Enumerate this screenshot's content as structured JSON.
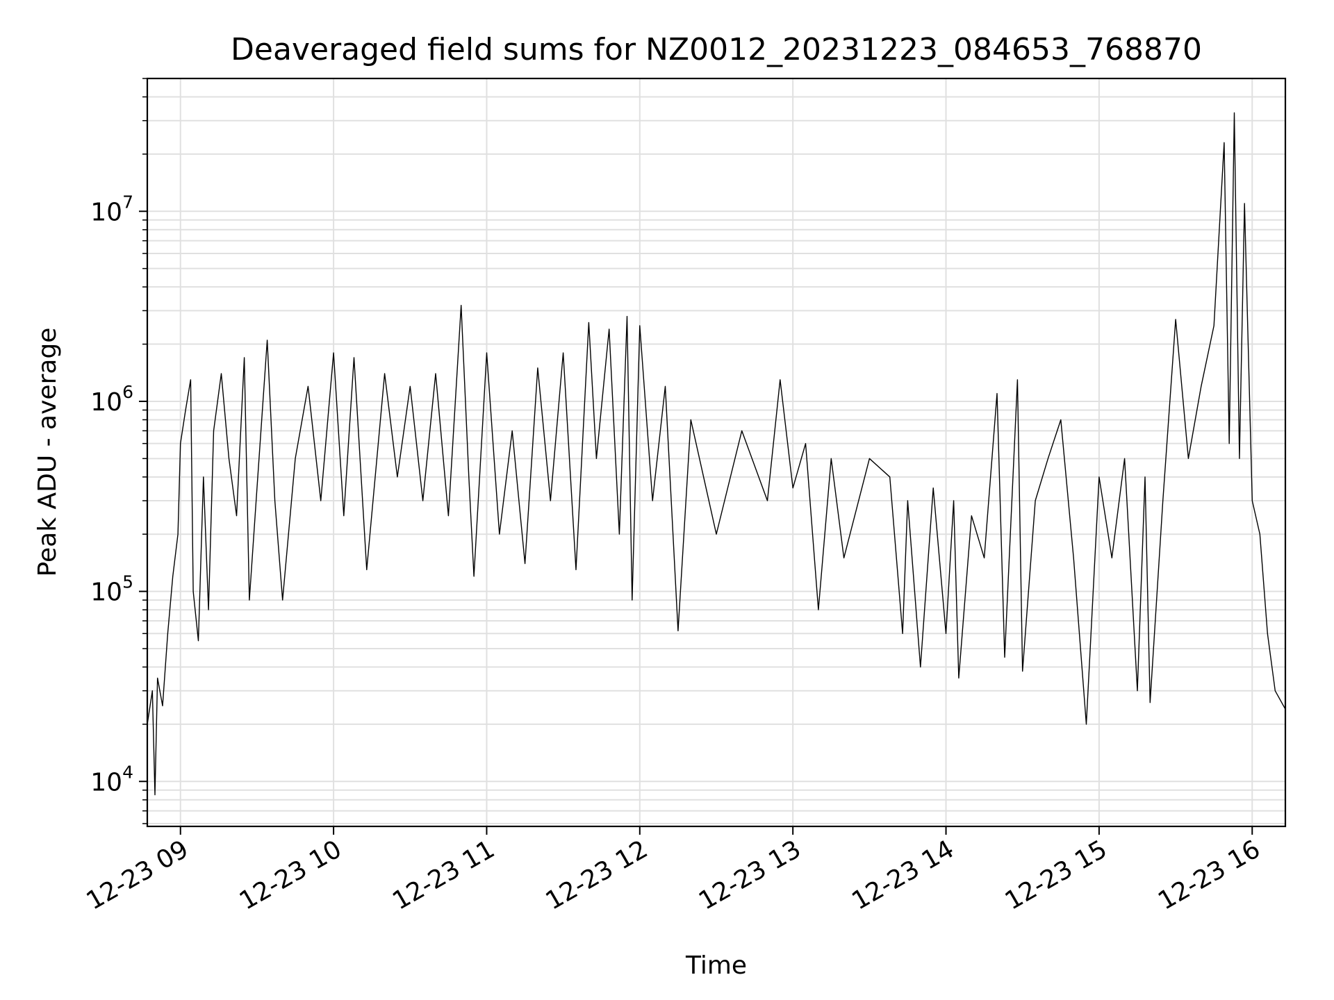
{
  "chart_data": {
    "type": "line",
    "title": "Deaveraged field sums for NZ0012_20231223_084653_768870",
    "xlabel": "Time",
    "ylabel": "Peak ADU - average",
    "y_scale": "log",
    "grid": true,
    "line_color": "#000000",
    "grid_color": "#e0e0e0",
    "xlim": [
      "2023-12-23 08:47",
      "2023-12-23 16:13"
    ],
    "ylim": [
      5800,
      50000000
    ],
    "x_ticks": [
      {
        "t": "2023-12-23 09:00",
        "label": "12-23 09"
      },
      {
        "t": "2023-12-23 10:00",
        "label": "12-23 10"
      },
      {
        "t": "2023-12-23 11:00",
        "label": "12-23 11"
      },
      {
        "t": "2023-12-23 12:00",
        "label": "12-23 12"
      },
      {
        "t": "2023-12-23 13:00",
        "label": "12-23 13"
      },
      {
        "t": "2023-12-23 14:00",
        "label": "12-23 14"
      },
      {
        "t": "2023-12-23 15:00",
        "label": "12-23 15"
      },
      {
        "t": "2023-12-23 16:00",
        "label": "12-23 16"
      }
    ],
    "y_ticks": [
      {
        "value": 10000,
        "base": "10",
        "exp": "4"
      },
      {
        "value": 100000,
        "base": "10",
        "exp": "5"
      },
      {
        "value": 1000000,
        "base": "10",
        "exp": "6"
      },
      {
        "value": 10000000,
        "base": "10",
        "exp": "7"
      }
    ],
    "series": [
      {
        "points": [
          [
            "2023-12-23 08:47",
            20000
          ],
          [
            "2023-12-23 08:49",
            30000
          ],
          [
            "2023-12-23 08:50",
            8500
          ],
          [
            "2023-12-23 08:51",
            35000
          ],
          [
            "2023-12-23 08:53",
            25000
          ],
          [
            "2023-12-23 08:55",
            60000
          ],
          [
            "2023-12-23 08:57",
            120000
          ],
          [
            "2023-12-23 08:59",
            200000
          ],
          [
            "2023-12-23 09:00",
            600000
          ],
          [
            "2023-12-23 09:02",
            900000
          ],
          [
            "2023-12-23 09:04",
            1300000
          ],
          [
            "2023-12-23 09:05",
            100000
          ],
          [
            "2023-12-23 09:07",
            55000
          ],
          [
            "2023-12-23 09:09",
            400000
          ],
          [
            "2023-12-23 09:11",
            80000
          ],
          [
            "2023-12-23 09:13",
            700000
          ],
          [
            "2023-12-23 09:16",
            1400000
          ],
          [
            "2023-12-23 09:19",
            500000
          ],
          [
            "2023-12-23 09:22",
            250000
          ],
          [
            "2023-12-23 09:25",
            1700000
          ],
          [
            "2023-12-23 09:27",
            90000
          ],
          [
            "2023-12-23 09:30",
            350000
          ],
          [
            "2023-12-23 09:34",
            2100000
          ],
          [
            "2023-12-23 09:37",
            300000
          ],
          [
            "2023-12-23 09:40",
            90000
          ],
          [
            "2023-12-23 09:45",
            500000
          ],
          [
            "2023-12-23 09:50",
            1200000
          ],
          [
            "2023-12-23 09:55",
            300000
          ],
          [
            "2023-12-23 10:00",
            1800000
          ],
          [
            "2023-12-23 10:04",
            250000
          ],
          [
            "2023-12-23 10:08",
            1700000
          ],
          [
            "2023-12-23 10:13",
            130000
          ],
          [
            "2023-12-23 10:20",
            1400000
          ],
          [
            "2023-12-23 10:25",
            400000
          ],
          [
            "2023-12-23 10:30",
            1200000
          ],
          [
            "2023-12-23 10:35",
            300000
          ],
          [
            "2023-12-23 10:40",
            1400000
          ],
          [
            "2023-12-23 10:45",
            250000
          ],
          [
            "2023-12-23 10:50",
            3200000
          ],
          [
            "2023-12-23 10:53",
            400000
          ],
          [
            "2023-12-23 10:55",
            120000
          ],
          [
            "2023-12-23 11:00",
            1800000
          ],
          [
            "2023-12-23 11:05",
            200000
          ],
          [
            "2023-12-23 11:10",
            700000
          ],
          [
            "2023-12-23 11:15",
            140000
          ],
          [
            "2023-12-23 11:20",
            1500000
          ],
          [
            "2023-12-23 11:25",
            300000
          ],
          [
            "2023-12-23 11:30",
            1800000
          ],
          [
            "2023-12-23 11:35",
            130000
          ],
          [
            "2023-12-23 11:40",
            2600000
          ],
          [
            "2023-12-23 11:43",
            500000
          ],
          [
            "2023-12-23 11:48",
            2400000
          ],
          [
            "2023-12-23 11:52",
            200000
          ],
          [
            "2023-12-23 11:55",
            2800000
          ],
          [
            "2023-12-23 11:57",
            90000
          ],
          [
            "2023-12-23 12:00",
            2500000
          ],
          [
            "2023-12-23 12:05",
            300000
          ],
          [
            "2023-12-23 12:10",
            1200000
          ],
          [
            "2023-12-23 12:15",
            62000
          ],
          [
            "2023-12-23 12:20",
            800000
          ],
          [
            "2023-12-23 12:30",
            200000
          ],
          [
            "2023-12-23 12:40",
            700000
          ],
          [
            "2023-12-23 12:50",
            300000
          ],
          [
            "2023-12-23 12:55",
            1300000
          ],
          [
            "2023-12-23 13:00",
            350000
          ],
          [
            "2023-12-23 13:05",
            600000
          ],
          [
            "2023-12-23 13:10",
            80000
          ],
          [
            "2023-12-23 13:15",
            500000
          ],
          [
            "2023-12-23 13:20",
            150000
          ],
          [
            "2023-12-23 13:30",
            500000
          ],
          [
            "2023-12-23 13:38",
            400000
          ],
          [
            "2023-12-23 13:43",
            60000
          ],
          [
            "2023-12-23 13:45",
            300000
          ],
          [
            "2023-12-23 13:50",
            40000
          ],
          [
            "2023-12-23 13:55",
            350000
          ],
          [
            "2023-12-23 14:00",
            60000
          ],
          [
            "2023-12-23 14:03",
            300000
          ],
          [
            "2023-12-23 14:05",
            35000
          ],
          [
            "2023-12-23 14:10",
            250000
          ],
          [
            "2023-12-23 14:15",
            150000
          ],
          [
            "2023-12-23 14:20",
            1100000
          ],
          [
            "2023-12-23 14:23",
            45000
          ],
          [
            "2023-12-23 14:28",
            1300000
          ],
          [
            "2023-12-23 14:30",
            38000
          ],
          [
            "2023-12-23 14:35",
            300000
          ],
          [
            "2023-12-23 14:40",
            500000
          ],
          [
            "2023-12-23 14:45",
            800000
          ],
          [
            "2023-12-23 14:50",
            150000
          ],
          [
            "2023-12-23 14:55",
            20000
          ],
          [
            "2023-12-23 15:00",
            400000
          ],
          [
            "2023-12-23 15:05",
            150000
          ],
          [
            "2023-12-23 15:10",
            500000
          ],
          [
            "2023-12-23 15:15",
            30000
          ],
          [
            "2023-12-23 15:18",
            400000
          ],
          [
            "2023-12-23 15:20",
            26000
          ],
          [
            "2023-12-23 15:25",
            300000
          ],
          [
            "2023-12-23 15:30",
            2700000
          ],
          [
            "2023-12-23 15:35",
            500000
          ],
          [
            "2023-12-23 15:40",
            1200000
          ],
          [
            "2023-12-23 15:45",
            2500000
          ],
          [
            "2023-12-23 15:49",
            23000000
          ],
          [
            "2023-12-23 15:51",
            600000
          ],
          [
            "2023-12-23 15:53",
            33000000
          ],
          [
            "2023-12-23 15:55",
            500000
          ],
          [
            "2023-12-23 15:57",
            11000000
          ],
          [
            "2023-12-23 16:00",
            300000
          ],
          [
            "2023-12-23 16:03",
            200000
          ],
          [
            "2023-12-23 16:06",
            60000
          ],
          [
            "2023-12-23 16:09",
            30000
          ],
          [
            "2023-12-23 16:13",
            24000
          ]
        ]
      }
    ]
  }
}
